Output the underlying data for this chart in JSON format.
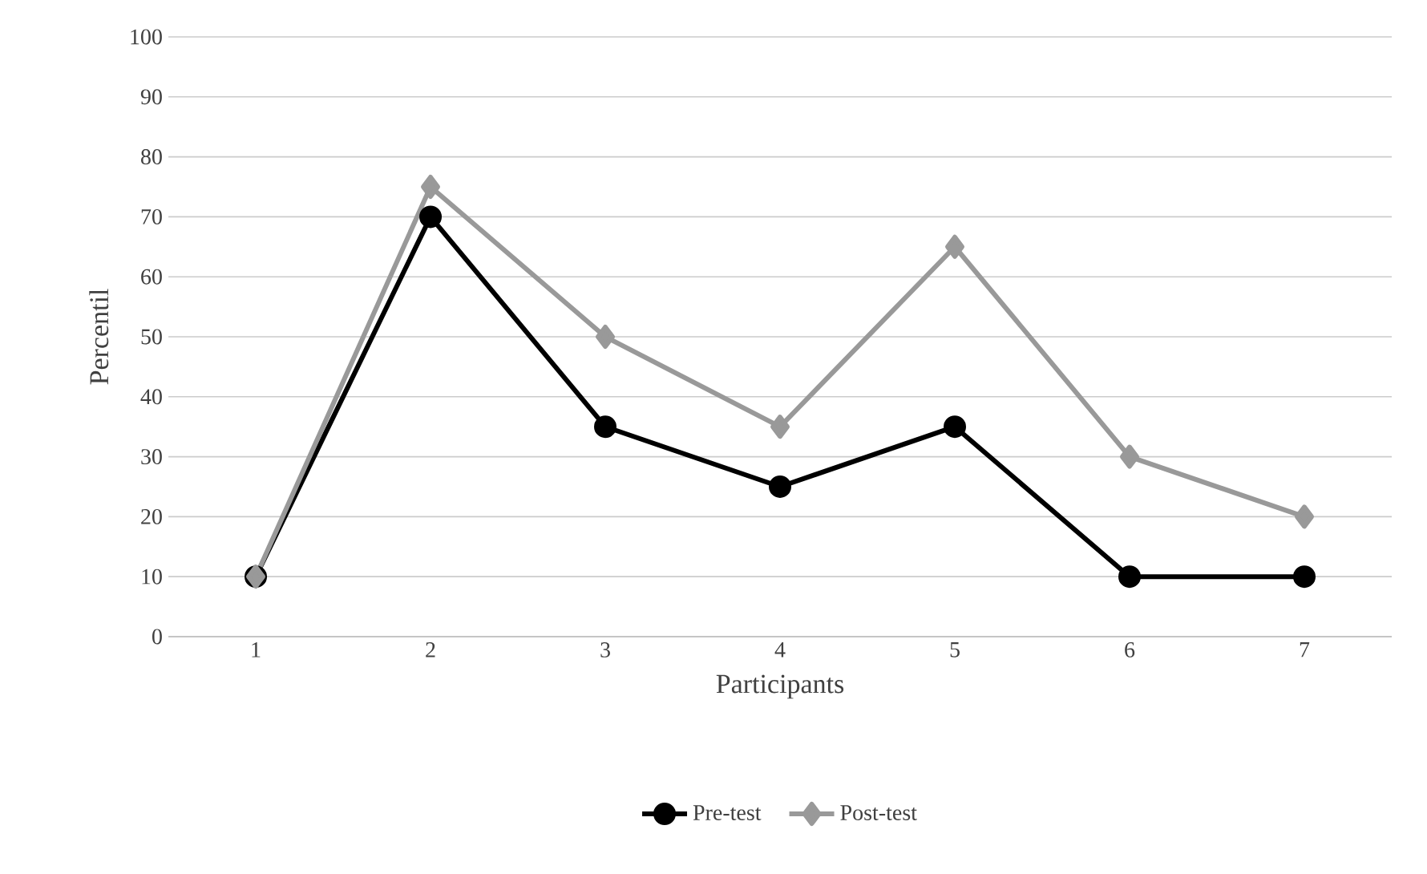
{
  "chart_data": {
    "type": "line",
    "xlabel": "Participants",
    "ylabel": "Percentil",
    "categories": [
      "1",
      "2",
      "3",
      "4",
      "5",
      "6",
      "7"
    ],
    "series": [
      {
        "name": "Pre-test",
        "color": "#000000",
        "marker": "circle",
        "values": [
          10,
          70,
          35,
          25,
          35,
          10,
          10
        ]
      },
      {
        "name": "Post-test",
        "color": "#999999",
        "marker": "diamond",
        "values": [
          10,
          75,
          50,
          35,
          65,
          30,
          20
        ]
      }
    ],
    "ylim": [
      0,
      100
    ],
    "yticks": [
      0,
      10,
      20,
      30,
      40,
      50,
      60,
      70,
      80,
      90,
      100
    ],
    "grid": "y",
    "legend": "bottom",
    "line_style": "solid"
  }
}
